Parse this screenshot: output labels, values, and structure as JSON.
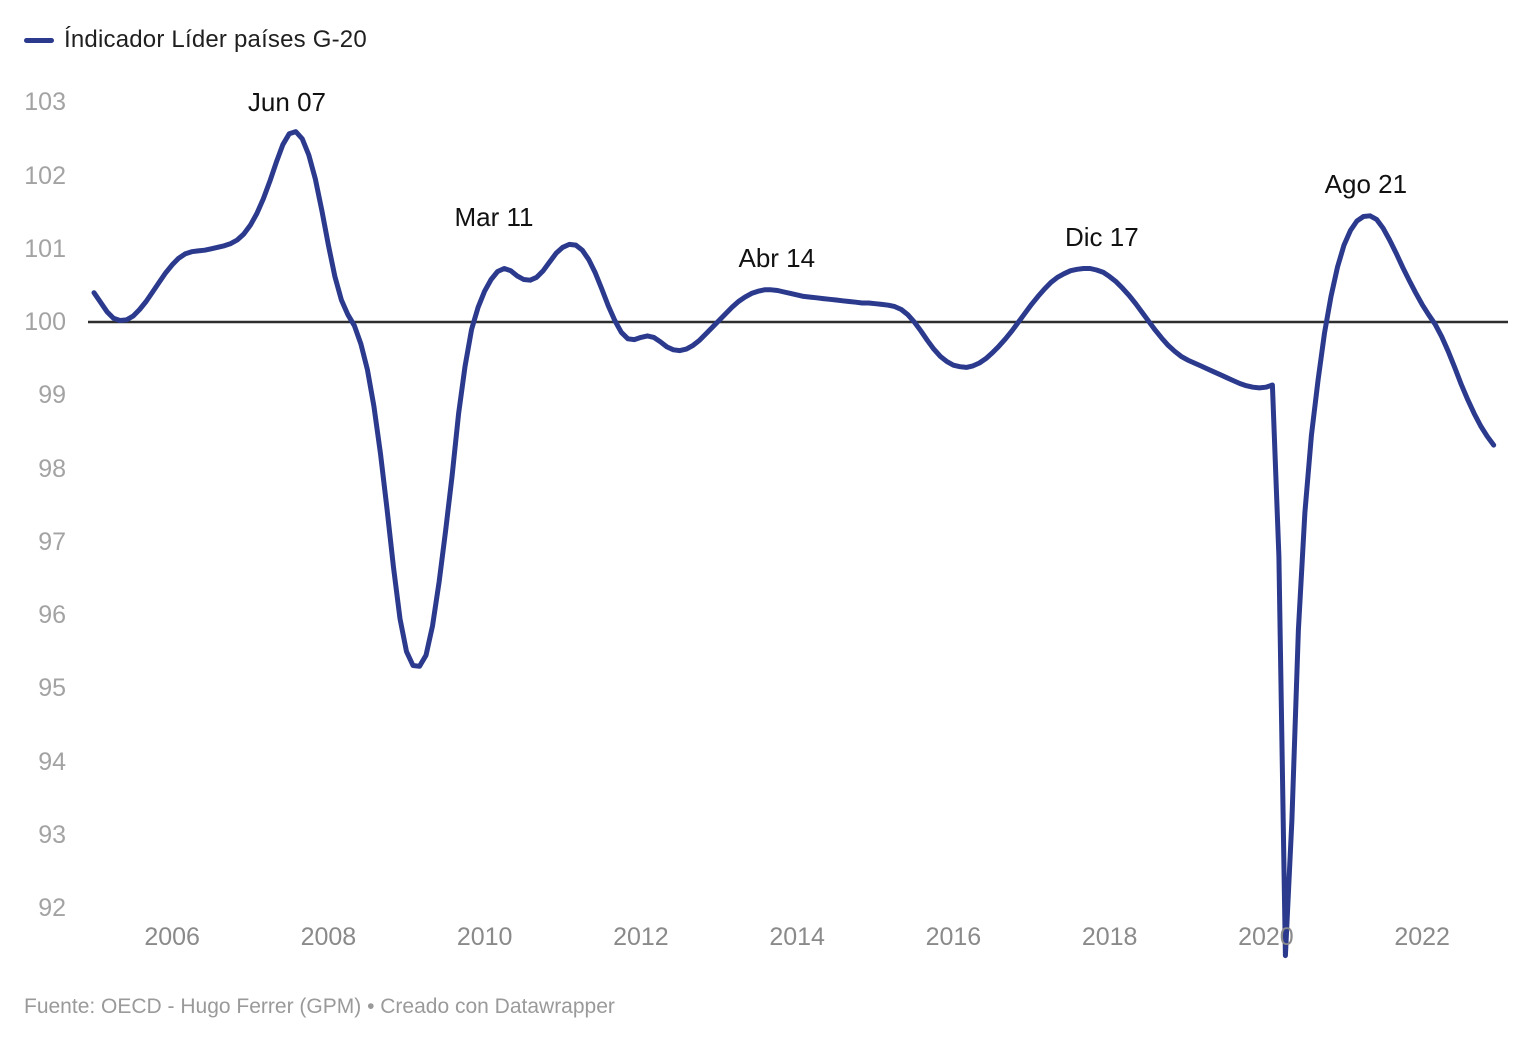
{
  "legend": {
    "label": "Índicador Líder países G-20"
  },
  "footer": {
    "text": "Fuente: OECD - Hugo Ferrer (GPM) • Creado con Datawrapper"
  },
  "colors": {
    "line": "#2c3a8e",
    "baseline": "#2e2e2e",
    "y_tick_text": "#a3a3a3",
    "x_tick_text": "#8a8a8a",
    "annotation_text": "#111111",
    "legend_text": "#1f1f1f",
    "footer_text": "#9a9a9a",
    "background": "#ffffff"
  },
  "chart_data": {
    "type": "line",
    "title": "",
    "series_name": "Índicador Líder países G-20",
    "frequency": "monthly",
    "x_start": "2005-01",
    "x_end": "2022-12",
    "ylim": [
      92,
      103
    ],
    "baseline": 100,
    "grid": false,
    "legend_position": "top-left",
    "y_ticks": [
      103,
      102,
      101,
      100,
      99,
      98,
      97,
      96,
      95,
      94,
      93,
      92
    ],
    "x_ticks": [
      2006,
      2008,
      2010,
      2012,
      2014,
      2016,
      2018,
      2020,
      2022
    ],
    "annotations": [
      {
        "text": "Jun 07",
        "x": 2007.47,
        "y": 103.0
      },
      {
        "text": "Mar 11",
        "x": 2010.12,
        "y": 101.43
      },
      {
        "text": "Abr 14",
        "x": 2013.74,
        "y": 100.88
      },
      {
        "text": "Dic 17",
        "x": 2017.9,
        "y": 101.16
      },
      {
        "text": "Ago 21",
        "x": 2021.28,
        "y": 101.88
      }
    ],
    "years": [
      {
        "year": 2005,
        "values": [
          100.4,
          100.27,
          100.14,
          100.05,
          100.02,
          100.03,
          100.08,
          100.17,
          100.28,
          100.41,
          100.54,
          100.67
        ]
      },
      {
        "year": 2006,
        "values": [
          100.78,
          100.87,
          100.93,
          100.96,
          100.97,
          100.98,
          101.0,
          101.02,
          101.04,
          101.07,
          101.12,
          101.2
        ]
      },
      {
        "year": 2007,
        "values": [
          101.32,
          101.48,
          101.68,
          101.92,
          102.18,
          102.42,
          102.57,
          102.6,
          102.5,
          102.28,
          101.95,
          101.52
        ]
      },
      {
        "year": 2008,
        "values": [
          101.05,
          100.62,
          100.3,
          100.1,
          99.95,
          99.7,
          99.35,
          98.85,
          98.2,
          97.45,
          96.65,
          95.95
        ]
      },
      {
        "year": 2009,
        "values": [
          95.5,
          95.31,
          95.3,
          95.45,
          95.85,
          96.45,
          97.15,
          97.9,
          98.75,
          99.4,
          99.9,
          100.2
        ]
      },
      {
        "year": 2010,
        "values": [
          100.42,
          100.58,
          100.69,
          100.73,
          100.7,
          100.63,
          100.58,
          100.57,
          100.61,
          100.7,
          100.82,
          100.94
        ]
      },
      {
        "year": 2011,
        "values": [
          101.02,
          101.06,
          101.05,
          100.98,
          100.85,
          100.67,
          100.45,
          100.22,
          100.02,
          99.86,
          99.77,
          99.76
        ]
      },
      {
        "year": 2012,
        "values": [
          99.79,
          99.81,
          99.79,
          99.73,
          99.66,
          99.62,
          99.61,
          99.63,
          99.68,
          99.75,
          99.84,
          99.93
        ]
      },
      {
        "year": 2013,
        "values": [
          100.02,
          100.11,
          100.2,
          100.28,
          100.34,
          100.39,
          100.42,
          100.44,
          100.44,
          100.43,
          100.41,
          100.39
        ]
      },
      {
        "year": 2014,
        "values": [
          100.37,
          100.35,
          100.34,
          100.33,
          100.32,
          100.31,
          100.3,
          100.29,
          100.28,
          100.27,
          100.26,
          100.26
        ]
      },
      {
        "year": 2015,
        "values": [
          100.25,
          100.24,
          100.23,
          100.21,
          100.17,
          100.1,
          100.0,
          99.88,
          99.75,
          99.63,
          99.53,
          99.46
        ]
      },
      {
        "year": 2016,
        "values": [
          99.41,
          99.39,
          99.38,
          99.4,
          99.44,
          99.5,
          99.58,
          99.67,
          99.77,
          99.88,
          100.0,
          100.12
        ]
      },
      {
        "year": 2017,
        "values": [
          100.24,
          100.35,
          100.45,
          100.54,
          100.61,
          100.66,
          100.7,
          100.72,
          100.73,
          100.73,
          100.71,
          100.68
        ]
      },
      {
        "year": 2018,
        "values": [
          100.62,
          100.55,
          100.46,
          100.36,
          100.25,
          100.13,
          100.01,
          99.89,
          99.78,
          99.68,
          99.6,
          99.53
        ]
      },
      {
        "year": 2019,
        "values": [
          99.48,
          99.44,
          99.4,
          99.36,
          99.32,
          99.28,
          99.24,
          99.2,
          99.16,
          99.13,
          99.11,
          99.1
        ]
      },
      {
        "year": 2020,
        "values": [
          99.11,
          99.14,
          96.8,
          91.35,
          93.2,
          95.8,
          97.4,
          98.45,
          99.2,
          99.85,
          100.35,
          100.75
        ]
      },
      {
        "year": 2021,
        "values": [
          101.05,
          101.25,
          101.38,
          101.44,
          101.45,
          101.4,
          101.28,
          101.12,
          100.94,
          100.75,
          100.57,
          100.4
        ]
      },
      {
        "year": 2022,
        "values": [
          100.24,
          100.1,
          99.97,
          99.8,
          99.6,
          99.38,
          99.15,
          98.94,
          98.75,
          98.58,
          98.44,
          98.32
        ]
      }
    ]
  }
}
